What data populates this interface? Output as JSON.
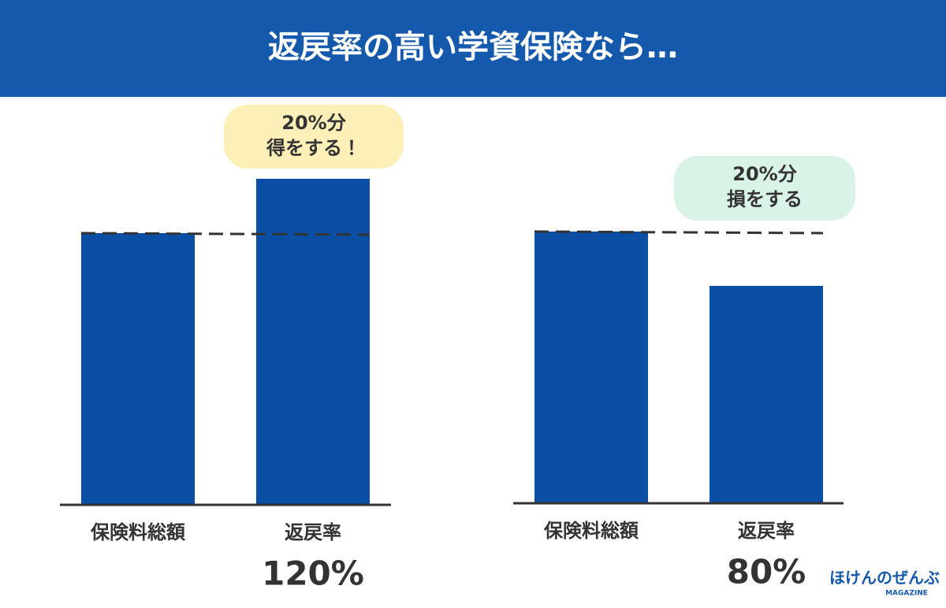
{
  "title": "返戻率の高い学資保険なら…",
  "chart_data": [
    {
      "type": "bar",
      "categories": [
        "保険料総額",
        "返戻率"
      ],
      "values": [
        100,
        120
      ],
      "value_labels": [
        null,
        "120%"
      ],
      "color": "#0a4fa3",
      "annotation": [
        "20%分",
        "得をする！"
      ],
      "annotation_color": "#fcefb8"
    },
    {
      "type": "bar",
      "categories": [
        "保険料総額",
        "返戻率"
      ],
      "values": [
        100,
        80
      ],
      "value_labels": [
        null,
        "80%"
      ],
      "color": "#0a4fa3",
      "annotation": [
        "20%分",
        "損をする"
      ],
      "annotation_color": "#daf3e7"
    }
  ],
  "logo": {
    "name": "ほけんのぜんぶ",
    "sub": "MAGAZINE"
  }
}
